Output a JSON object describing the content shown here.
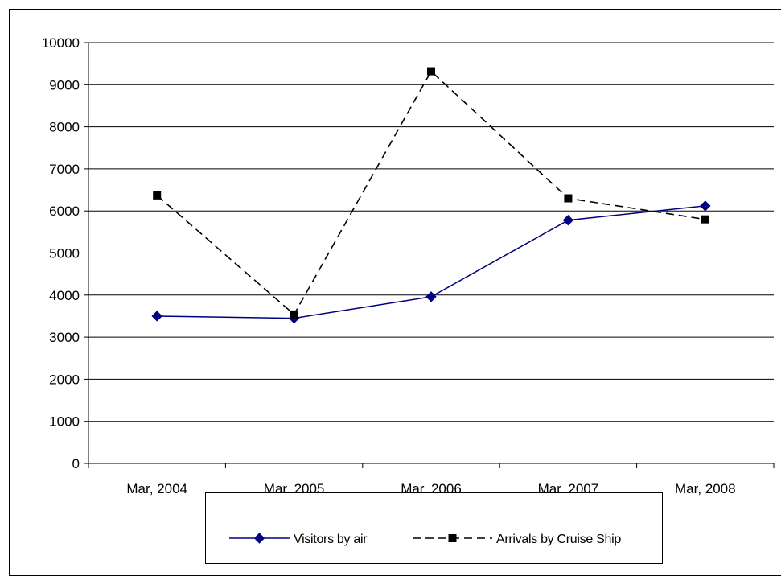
{
  "chart_data": {
    "type": "line",
    "title": "",
    "xlabel": "",
    "ylabel": "",
    "categories": [
      "Mar, 2004",
      "Mar, 2005",
      "Mar, 2006",
      "Mar, 2007",
      "Mar, 2008"
    ],
    "ylim": [
      0,
      10000
    ],
    "yticks": [
      0,
      1000,
      2000,
      3000,
      4000,
      5000,
      6000,
      7000,
      8000,
      9000,
      10000
    ],
    "grid": true,
    "legend_position": "bottom",
    "series": [
      {
        "name": "Visitors by air",
        "values": [
          3500,
          3450,
          3960,
          5780,
          6120
        ],
        "color": "#000080",
        "line_style": "solid",
        "marker": "diamond"
      },
      {
        "name": "Arrivals by Cruise Ship",
        "values": [
          6370,
          3540,
          9320,
          6300,
          5800
        ],
        "color": "#000000",
        "line_style": "dashed",
        "marker": "square"
      }
    ]
  }
}
